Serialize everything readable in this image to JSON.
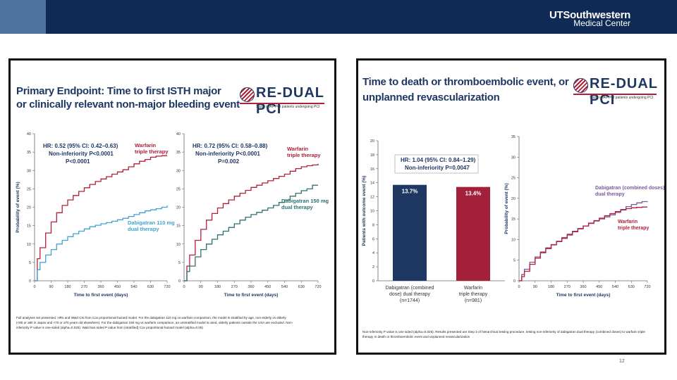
{
  "header": {
    "logo_line1": "UTSouthwestern",
    "logo_line2": "Medical Center"
  },
  "page_number": "12",
  "colors": {
    "navy": "#1f3863",
    "red": "#b0203a",
    "teal": "#2b8f8e",
    "lightblue": "#3fa3d1",
    "darkteal": "#2d7070",
    "purple": "#7a5a9a",
    "darkred": "#a3203a"
  },
  "left_panel": {
    "title_line1": "Primary Endpoint: Time to first ISTH major",
    "title_line2": "or clinically relevant non-major bleeding event",
    "logo_text": "RE-DUAL PCI",
    "logo_sub": "Study in AF PCI patients undergoing PCI",
    "footnote_line1": "Full analyses set presented. HRs and Wald CIs from Cox proportional-hazard model. For the dabigatran 110 mg vs warfarin comparison, the model is stratified by age, non-elderly vs elderly",
    "footnote_line2": "(<80 or ≥80 in Japan and <70 or ≥70 years old elsewhere). For the dabigatran 150 mg vs warfarin comparison, an unstratified model is used, elderly patients outside the USA are excluded. Non-",
    "footnote_line3": "inferiority P value is one-sided (alpha=0.025). Wald two-sided P value from (stratified) Cox proportional-hazard model (alpha=0.05)"
  },
  "right_panel": {
    "title_line1": "Time to death or thromboembolic event, or",
    "title_line2": "unplanned revascularization",
    "logo_text": "RE-DUAL PCI",
    "logo_sub": "Study in AF PCI patients undergoing PCI",
    "footnote_line1": "Non-inferiority P value is one sided (alpha=0.025). Results presented are Step 3 of hierarchical testing procedure, testing non-inferiority of dabigatran dual therapy (combined doses) to warfarin triple",
    "footnote_line2": "therapy in death or thromboembolic event and unplanned revascularization"
  },
  "chart_data": [
    {
      "id": "left-km-110",
      "type": "line",
      "xlabel": "Time to first event (days)",
      "ylabel": "Probability of event (%)",
      "xlim": [
        0,
        720
      ],
      "ylim": [
        0,
        40
      ],
      "xticks": [
        "0",
        "90",
        "180",
        "270",
        "360",
        "450",
        "540",
        "630",
        "720"
      ],
      "yticks": [
        "0",
        "5",
        "10",
        "15",
        "20",
        "25",
        "30",
        "35",
        "40"
      ],
      "annotation": [
        "HR: 0.52 (95% CI: 0.42–0.63)",
        "Non-inferiority P<0.0001",
        "P<0.0001"
      ],
      "series": [
        {
          "name": "Warfarin triple therapy",
          "label_lines": [
            "Warfarin",
            "triple therapy"
          ],
          "color": "#b0203a",
          "x": [
            0,
            15,
            30,
            60,
            90,
            120,
            150,
            180,
            210,
            240,
            270,
            300,
            330,
            360,
            390,
            420,
            450,
            480,
            510,
            540,
            570,
            600,
            630,
            660,
            690,
            720
          ],
          "y": [
            0,
            6,
            9,
            13,
            16,
            18.5,
            20.5,
            22,
            23.2,
            24.3,
            25.3,
            26.2,
            27,
            27.7,
            28.3,
            29,
            29.6,
            30.2,
            31,
            31.8,
            32.5,
            33,
            33.6,
            33.9,
            34,
            34
          ]
        },
        {
          "name": "Dabigatran 110 mg dual therapy",
          "label_lines": [
            "Dabigatran 110 mg",
            "dual therapy"
          ],
          "color": "#3fa3d1",
          "x": [
            0,
            15,
            30,
            60,
            90,
            120,
            150,
            180,
            210,
            240,
            270,
            300,
            330,
            360,
            390,
            420,
            450,
            480,
            510,
            540,
            570,
            600,
            630,
            660,
            690,
            720
          ],
          "y": [
            0,
            3,
            5,
            7,
            8.5,
            10,
            11,
            12,
            12.8,
            13.5,
            14.1,
            14.7,
            15.1,
            15.5,
            15.8,
            16.2,
            16.6,
            17,
            17.5,
            18,
            18.5,
            19,
            19.3,
            19.6,
            20,
            20.5
          ]
        }
      ]
    },
    {
      "id": "left-km-150",
      "type": "line",
      "xlabel": "Time to first event (days)",
      "ylabel": "",
      "xlim": [
        0,
        720
      ],
      "ylim": [
        0,
        40
      ],
      "xticks": [
        "0",
        "90",
        "180",
        "270",
        "360",
        "450",
        "540",
        "630",
        "720"
      ],
      "yticks": [
        "0",
        "5",
        "10",
        "15",
        "20",
        "25",
        "30",
        "35",
        "40"
      ],
      "annotation": [
        "HR: 0.72 (95% CI: 0.58–0.88)",
        "Non-inferiority P<0.0001",
        "P=0.002"
      ],
      "series": [
        {
          "name": "Warfarin triple therapy",
          "label_lines": [
            "Warfarin",
            "triple therapy"
          ],
          "color": "#b0203a",
          "x": [
            0,
            15,
            30,
            60,
            90,
            120,
            150,
            180,
            210,
            240,
            270,
            300,
            330,
            360,
            390,
            420,
            450,
            480,
            510,
            540,
            570,
            600,
            630,
            660,
            690,
            720
          ],
          "y": [
            0,
            4,
            7,
            11,
            14,
            16.5,
            18.3,
            19.8,
            21,
            22,
            23,
            23.8,
            24.6,
            25.4,
            26,
            26.6,
            27.2,
            27.8,
            28.4,
            29,
            29.8,
            30.5,
            31,
            31.3,
            31.5,
            31.8
          ]
        },
        {
          "name": "Dabigatran 150 mg dual therapy",
          "label_lines": [
            "Dabigatran 150 mg",
            "dual therapy"
          ],
          "color": "#2d7070",
          "x": [
            0,
            15,
            30,
            60,
            90,
            120,
            150,
            180,
            210,
            240,
            270,
            300,
            330,
            360,
            390,
            420,
            450,
            480,
            510,
            540,
            570,
            600,
            630,
            660,
            690,
            720
          ],
          "y": [
            0,
            2.5,
            4,
            6.5,
            8.5,
            10,
            11.3,
            12.5,
            13.5,
            14.5,
            15.5,
            16.5,
            17.3,
            18,
            18.6,
            19.2,
            19.8,
            20.5,
            21.3,
            22,
            23,
            23.8,
            24.5,
            25,
            26,
            26
          ]
        }
      ]
    },
    {
      "id": "right-bar",
      "type": "bar",
      "ylabel": "Patients with outcome event (%)",
      "ylim": [
        0,
        20
      ],
      "yticks": [
        "0",
        "2",
        "4",
        "6",
        "8",
        "10",
        "12",
        "14",
        "16",
        "18",
        "20"
      ],
      "annotation": [
        "HR: 1.04 (95% CI: 0.84–1.29)",
        "Non-inferiority P=0.0047"
      ],
      "categories": [
        "Dabigatran (combined dose) dual therapy (n=1744)",
        "Warfarin triple therapy (n=981)"
      ],
      "category_lines": [
        [
          "Dabigatran (combined",
          "dose) dual therapy",
          "(n=1744)"
        ],
        [
          "Warfarin",
          "triple therapy",
          "(n=981)"
        ]
      ],
      "values": [
        13.7,
        13.4
      ],
      "value_labels": [
        "13.7%",
        "13.4%"
      ],
      "colors": [
        "#1f3863",
        "#a3203a"
      ]
    },
    {
      "id": "right-km",
      "type": "line",
      "xlabel": "Time to first event (days)",
      "ylabel": "Probability of event (%)",
      "xlim": [
        0,
        720
      ],
      "ylim": [
        0,
        35
      ],
      "xticks": [
        "0",
        "90",
        "180",
        "270",
        "360",
        "450",
        "540",
        "630",
        "720"
      ],
      "yticks": [
        "0",
        "5",
        "10",
        "15",
        "20",
        "25",
        "30",
        "35"
      ],
      "series": [
        {
          "name": "Dabigatran (combined doses) dual therapy",
          "label_lines": [
            "Dabigatran (combined doses)",
            "dual therapy"
          ],
          "color": "#7a5a9a",
          "x": [
            0,
            15,
            30,
            60,
            90,
            120,
            150,
            180,
            210,
            240,
            270,
            300,
            330,
            360,
            390,
            420,
            450,
            480,
            510,
            540,
            570,
            600,
            630,
            660,
            690,
            720
          ],
          "y": [
            0,
            1.5,
            2.8,
            4.5,
            5.8,
            7,
            8,
            8.8,
            9.6,
            10.5,
            11.3,
            12,
            12.7,
            13.3,
            13.9,
            14.5,
            15,
            15.5,
            16,
            16.6,
            17.3,
            18,
            18.5,
            18.9,
            19.2,
            19.3
          ]
        },
        {
          "name": "Warfarin triple therapy",
          "label_lines": [
            "Warfarin",
            "triple therapy"
          ],
          "color": "#b0203a",
          "x": [
            0,
            15,
            30,
            60,
            90,
            120,
            150,
            180,
            210,
            240,
            270,
            300,
            330,
            360,
            390,
            420,
            450,
            480,
            510,
            540,
            570,
            600,
            630,
            660,
            690,
            720
          ],
          "y": [
            0,
            1,
            2.3,
            4,
            5.5,
            6.8,
            7.8,
            8.7,
            9.5,
            10.3,
            11.1,
            11.9,
            12.6,
            13.3,
            14,
            14.6,
            15.2,
            15.8,
            16.3,
            16.8,
            17.2,
            17.5,
            17.7,
            17.8,
            17.9,
            17.9
          ]
        }
      ]
    }
  ]
}
